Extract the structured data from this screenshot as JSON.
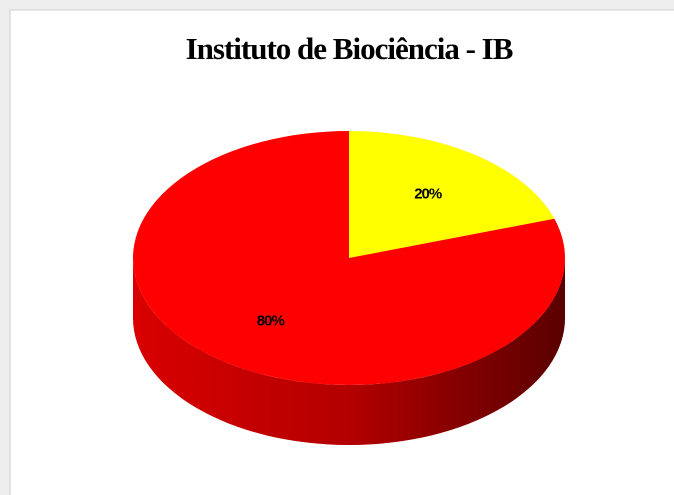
{
  "chart_data": {
    "type": "pie",
    "title": "Instituto de Biociência - IB",
    "categories": [
      null,
      null
    ],
    "values": [
      20,
      80
    ],
    "value_labels": [
      "20%",
      "80%"
    ],
    "colors": [
      "#ffff00",
      "#ff0000"
    ]
  }
}
